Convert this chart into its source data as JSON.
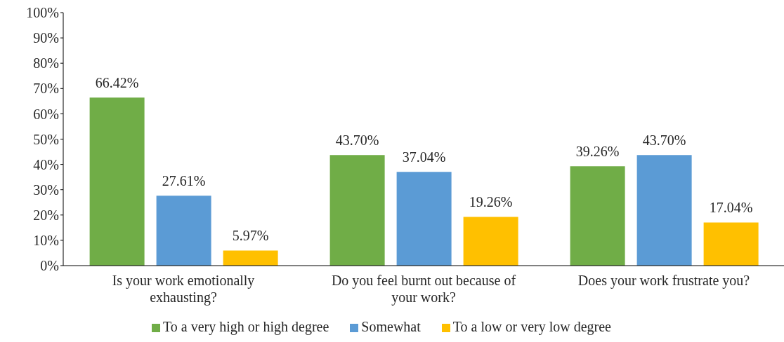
{
  "chart_data": {
    "type": "bar",
    "categories": [
      "Is your work emotionally exhausting?",
      "Do you feel burnt out because of your work?",
      "Does your work frustrate you?"
    ],
    "series": [
      {
        "name": "To a very high or high degree",
        "color": "#70ad47",
        "values": [
          66.42,
          43.7,
          39.26
        ],
        "value_labels": [
          "66.42%",
          "43.70%",
          "39.26%"
        ]
      },
      {
        "name": "Somewhat",
        "color": "#5b9bd5",
        "values": [
          27.61,
          37.04,
          43.7
        ],
        "value_labels": [
          "27.61%",
          "37.04%",
          "43.70%"
        ]
      },
      {
        "name": "To a low or very low degree",
        "color": "#ffc000",
        "values": [
          5.97,
          19.26,
          17.04
        ],
        "value_labels": [
          "5.97%",
          "19.26%",
          "17.04%"
        ]
      }
    ],
    "ylim": [
      0,
      100
    ],
    "yticks": [
      {
        "value": 0,
        "label": "0%"
      },
      {
        "value": 10,
        "label": "10%"
      },
      {
        "value": 20,
        "label": "20%"
      },
      {
        "value": 30,
        "label": "30%"
      },
      {
        "value": 40,
        "label": "40%"
      },
      {
        "value": 50,
        "label": "50%"
      },
      {
        "value": 60,
        "label": "60%"
      },
      {
        "value": 70,
        "label": "70%"
      },
      {
        "value": 80,
        "label": "80%"
      },
      {
        "value": 90,
        "label": "90%"
      },
      {
        "value": 100,
        "label": "100%"
      }
    ],
    "grid": false,
    "legend": "bottom"
  }
}
